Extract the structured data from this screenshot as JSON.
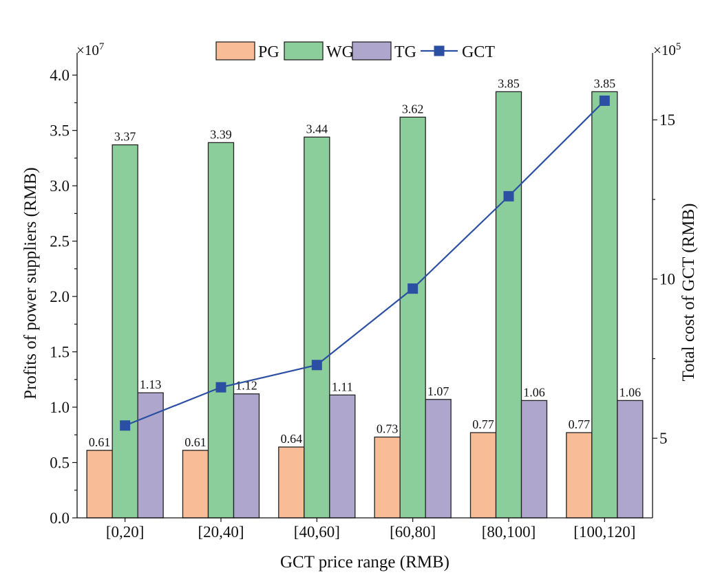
{
  "chart_data": {
    "type": "bar",
    "title": "",
    "xlabel": "GCT price range (RMB)",
    "ylabel": "Profits of power suppliers (RMB)",
    "y2label": "Total cost of GCT  (RMB)",
    "y_multiplier": "×10",
    "y_multiplier_exp": "7",
    "y2_multiplier": "×10",
    "y2_multiplier_exp": "5",
    "categories": [
      "[0,20]",
      "[20,40]",
      "[40,60]",
      "[60,80]",
      "[80,100]",
      "[100,120]"
    ],
    "ylim": [
      0,
      4.2
    ],
    "yticks": [
      "0.0",
      "0.5",
      "1.0",
      "1.5",
      "2.0",
      "2.5",
      "3.0",
      "3.5",
      "4.0"
    ],
    "y2lim": [
      2.5,
      17.1
    ],
    "y2ticks": [
      "5",
      "10",
      "15"
    ],
    "series": [
      {
        "name": "PG",
        "kind": "bar",
        "color": "#f8bc96",
        "values": [
          0.61,
          0.61,
          0.64,
          0.73,
          0.77,
          0.77
        ],
        "labels": [
          "0.61",
          "0.61",
          "0.64",
          "0.73",
          "0.77",
          "0.77"
        ]
      },
      {
        "name": "WG",
        "kind": "bar",
        "color": "#8ccd9c",
        "values": [
          3.37,
          3.39,
          3.44,
          3.62,
          3.85,
          3.85
        ],
        "labels": [
          "3.37",
          "3.39",
          "3.44",
          "3.62",
          "3.85",
          "3.85"
        ]
      },
      {
        "name": "TG",
        "kind": "bar",
        "color": "#afa6cd",
        "values": [
          1.13,
          1.12,
          1.11,
          1.07,
          1.06,
          1.06
        ],
        "labels": [
          "1.13",
          "1.12",
          "1.11",
          "1.07",
          "1.06",
          "1.06"
        ]
      },
      {
        "name": "GCT",
        "kind": "line",
        "axis": "right",
        "color": "#2b4fa3",
        "values": [
          5.4,
          6.6,
          7.3,
          9.7,
          12.6,
          15.6
        ]
      }
    ],
    "legend": {
      "position": "top-center",
      "entries": [
        "PG",
        "WG",
        "TG",
        "GCT"
      ]
    }
  }
}
